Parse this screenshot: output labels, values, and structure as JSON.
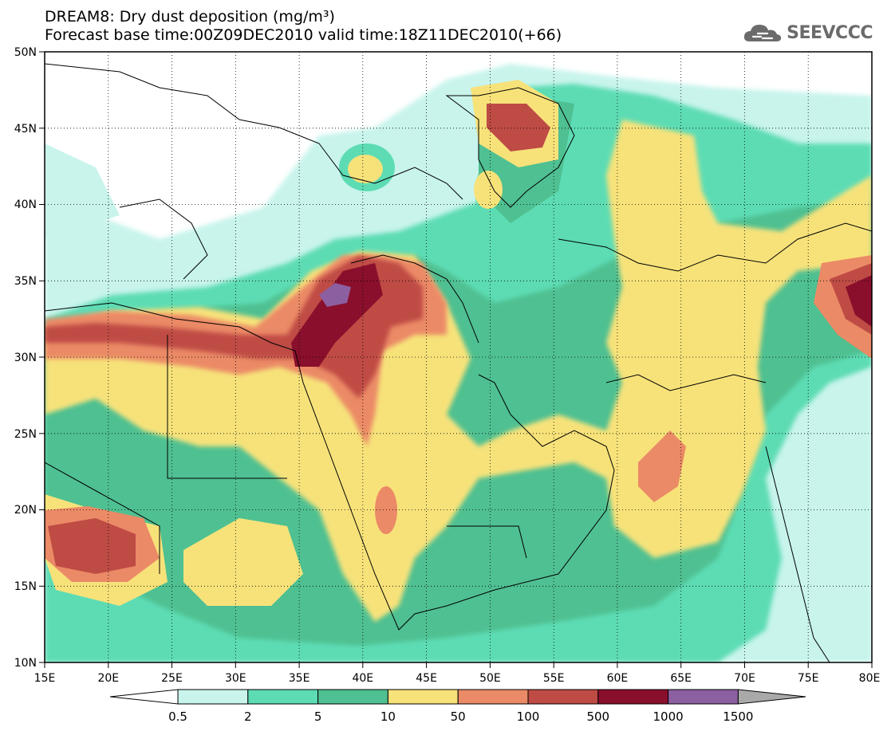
{
  "header": {
    "title_line1": "DREAM8: Dry dust deposition (mg/m³)",
    "title_line2": "Forecast base time:00Z09DEC2010 valid time:18Z11DEC2010(+66)",
    "logo_text": "SEEVCCC"
  },
  "map": {
    "lon_range": [
      15,
      80
    ],
    "lat_range": [
      10,
      50
    ],
    "lon_ticks": [
      "15E",
      "20E",
      "25E",
      "30E",
      "35E",
      "40E",
      "45E",
      "50E",
      "55E",
      "60E",
      "65E",
      "70E",
      "75E",
      "80E"
    ],
    "lat_ticks": [
      "10N",
      "15N",
      "20N",
      "25N",
      "30N",
      "35N",
      "40N",
      "45N",
      "50N"
    ]
  },
  "colorbar": {
    "labels": [
      "0.5",
      "2",
      "5",
      "10",
      "50",
      "100",
      "500",
      "1000",
      "1500"
    ],
    "colors": [
      "#ffffff",
      "#c8f4ec",
      "#5ddcb4",
      "#4fc091",
      "#f7e27a",
      "#eb8a66",
      "#bf4b45",
      "#8a0f2c",
      "#8c5fa0",
      "#a9a9a9"
    ]
  }
}
